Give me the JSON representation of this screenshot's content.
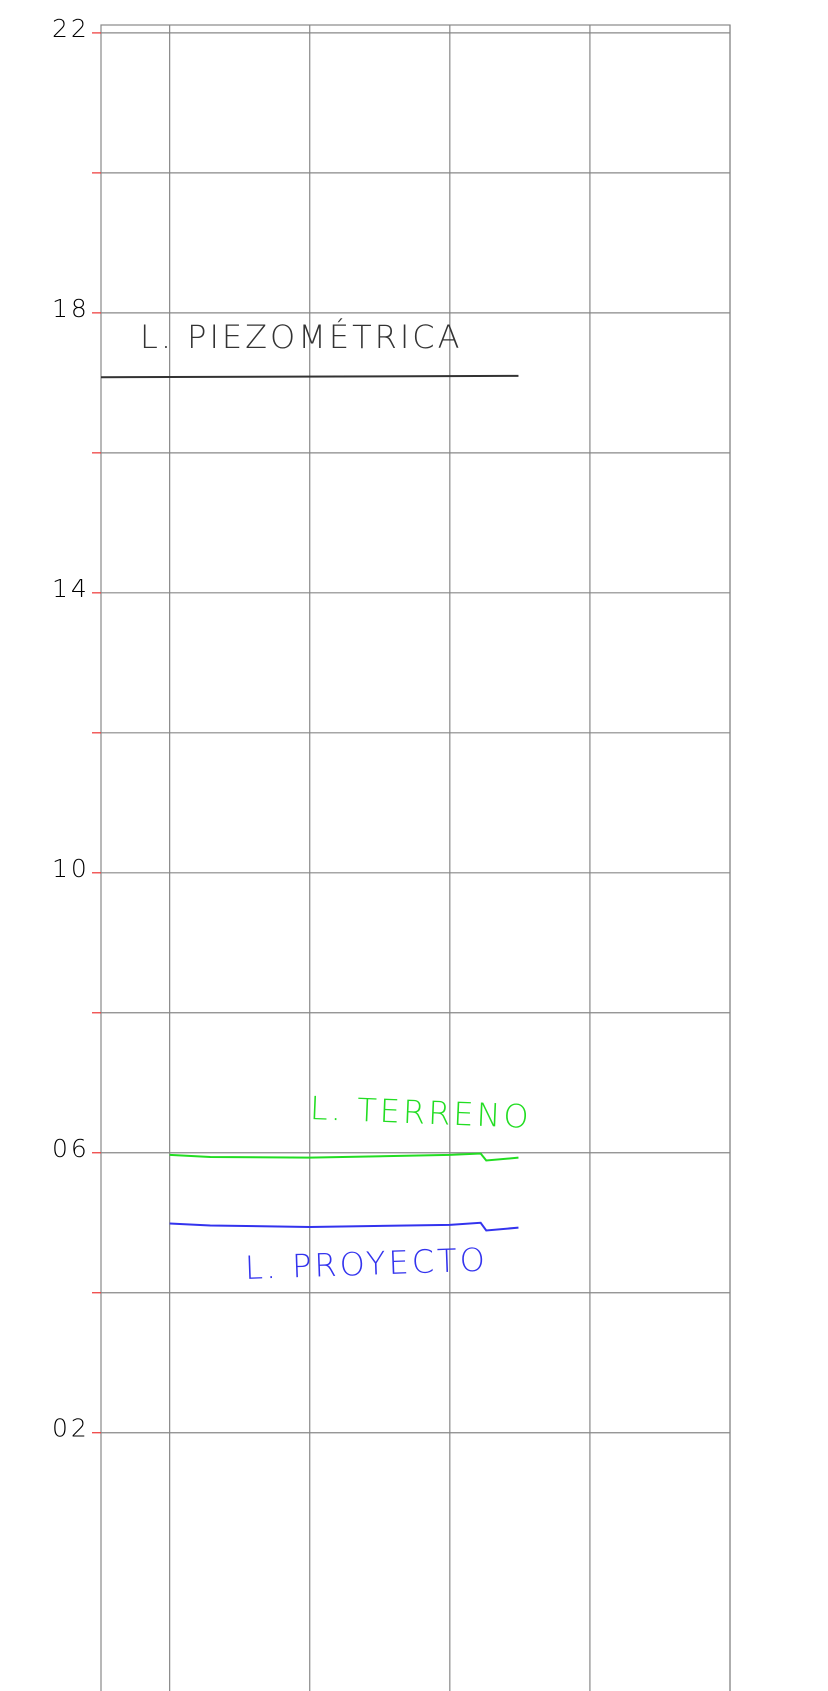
{
  "chart_data": {
    "type": "line",
    "xlim": [
      -0.49,
      4
    ],
    "xticks": [
      0,
      1,
      2,
      3,
      4
    ],
    "ylim": [
      -1.69,
      22.47
    ],
    "yticks": [
      22,
      18,
      14,
      10,
      {
        "value": 6,
        "label": "06"
      },
      {
        "value": 2,
        "label": "02"
      }
    ],
    "yticks_minor": [
      20,
      16,
      12,
      8,
      4
    ],
    "grid": true,
    "series": [
      {
        "name": "L. PIEZOMÉTRICA",
        "color": "#333333",
        "x": [
          -0.49,
          2.49
        ],
        "values": [
          17.08,
          17.1
        ]
      },
      {
        "name": "L. TERRENO",
        "color": "#22dd22",
        "x": [
          0,
          0.29,
          1,
          2,
          2.22,
          2.26,
          2.49
        ],
        "values": [
          5.97,
          5.94,
          5.93,
          5.97,
          5.99,
          5.89,
          5.93
        ]
      },
      {
        "name": "L. PROYECTO",
        "color": "#3333ee",
        "x": [
          0,
          0.29,
          1,
          2,
          2.22,
          2.26,
          2.49
        ],
        "values": [
          4.99,
          4.96,
          4.94,
          4.97,
          5.0,
          4.89,
          4.93
        ]
      }
    ]
  }
}
